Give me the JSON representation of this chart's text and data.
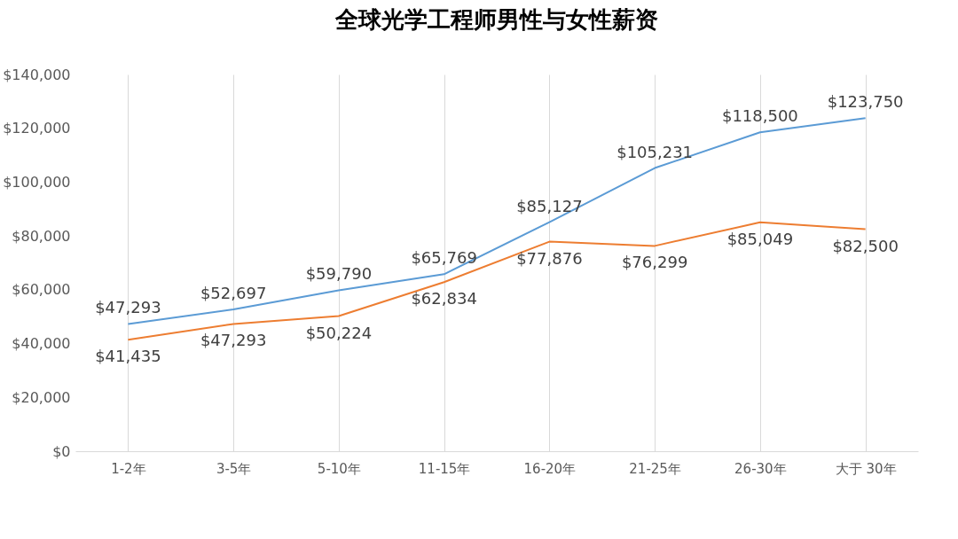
{
  "chart_data": {
    "type": "line",
    "title": "全球光学工程师男性与女性薪资",
    "categories": [
      "1-2年",
      "3-5年",
      "5-10年",
      "11-15年",
      "16-20年",
      "21-25年",
      "26-30年",
      "大于 30年"
    ],
    "series": [
      {
        "color": "#5b9bd5",
        "values": [
          47293,
          52697,
          59790,
          65769,
          85127,
          105231,
          118500,
          123750
        ],
        "value_labels": [
          "$47,293",
          "$52,697",
          "$59,790",
          "$65,769",
          "$85,127",
          "$105,231",
          "$118,500",
          "$123,750"
        ]
      },
      {
        "color": "#ed7d31",
        "values": [
          41435,
          47293,
          50224,
          62834,
          77876,
          76299,
          85049,
          82500
        ],
        "value_labels": [
          "$41,435",
          "$47,293",
          "$50,224",
          "$62,834",
          "$77,876",
          "$76,299",
          "$85,049",
          "$82,500"
        ]
      }
    ],
    "ylim": [
      0,
      140000
    ],
    "yticks": [
      {
        "value": 0,
        "label": "$0"
      },
      {
        "value": 20000,
        "label": "$20,000"
      },
      {
        "value": 40000,
        "label": "$40,000"
      },
      {
        "value": 60000,
        "label": "$60,000"
      },
      {
        "value": 80000,
        "label": "$80,000"
      },
      {
        "value": 100000,
        "label": "$100,000"
      },
      {
        "value": 120000,
        "label": "$120,000"
      },
      {
        "value": 140000,
        "label": "$140,000"
      }
    ],
    "grid": "x",
    "line_style": "solid",
    "marker": "none"
  }
}
